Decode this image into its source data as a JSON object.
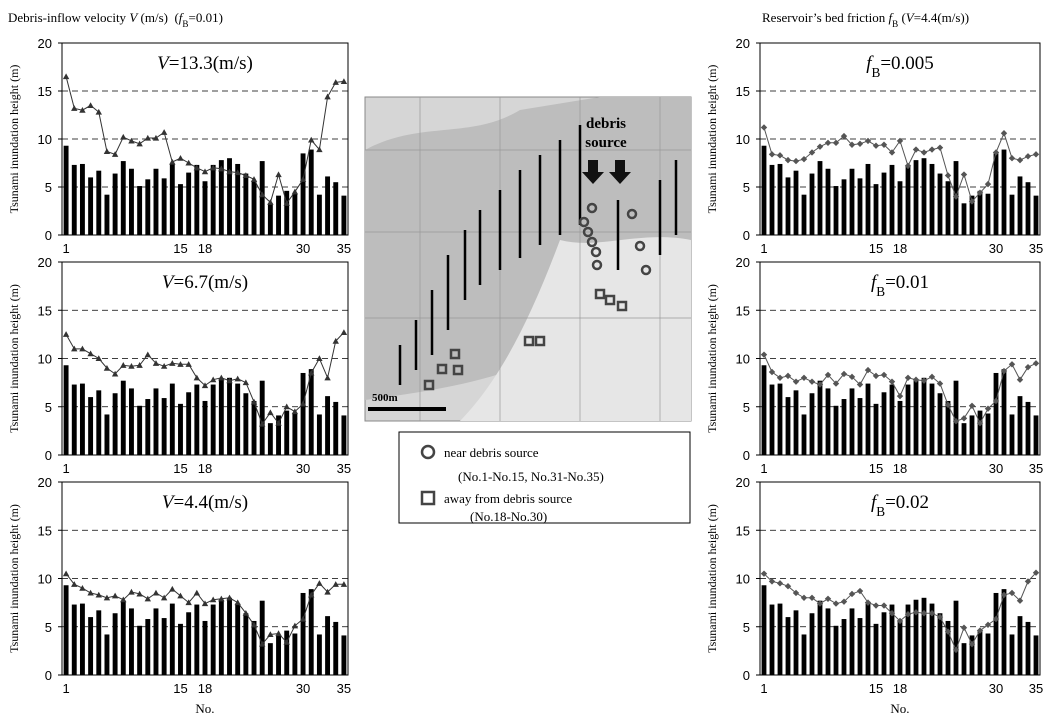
{
  "headings": [
    [
      {
        "text": "Debris-inflow velocity ",
        "style": "normal"
      },
      {
        "text": "V",
        "style": "italic"
      },
      {
        "text": " (m/s)  (",
        "style": "normal"
      },
      {
        "text": "f",
        "style": "italic"
      },
      {
        "text": "B",
        "style": "sub"
      },
      {
        "text": "=0.01)",
        "style": "normal"
      }
    ],
    [
      {
        "text": "Reservoir’s bed friction ",
        "style": "normal"
      },
      {
        "text": "f",
        "style": "italic"
      },
      {
        "text": "B",
        "style": "sub"
      },
      {
        "text": " (",
        "style": "normal"
      },
      {
        "text": "V",
        "style": "italic"
      },
      {
        "text": "=4.4(m/s))",
        "style": "normal"
      }
    ]
  ],
  "map": {
    "label1": "debris",
    "label2": "source",
    "scale": "500m",
    "legend": [
      {
        "text1": "near debris source",
        "text2": "(No.1-No.15, No.31-No.35)",
        "shape": "circle"
      },
      {
        "text1": "away from debris source",
        "text2": "(No.18-No.30)",
        "shape": "square"
      }
    ]
  },
  "chart_data": [
    {
      "type": "combo",
      "annotation": [
        {
          "text": "V",
          "style": "italic"
        },
        {
          "text": "=13.3(m/s)",
          "style": "normal"
        }
      ],
      "ylabel": "Tsunami inundation height (m)",
      "categories": [
        "1",
        null,
        null,
        null,
        null,
        null,
        null,
        null,
        null,
        null,
        null,
        null,
        null,
        null,
        "15",
        null,
        null,
        "18",
        null,
        null,
        null,
        null,
        null,
        null,
        null,
        null,
        null,
        null,
        null,
        "30",
        null,
        null,
        null,
        null,
        "35"
      ],
      "ylim": [
        0,
        20
      ],
      "yticks": [
        0,
        5,
        10,
        15,
        20
      ],
      "grid": true,
      "series": [
        {
          "style": "bar",
          "color": "#000000",
          "values": [
            9.3,
            7.3,
            7.4,
            6.0,
            6.7,
            4.2,
            6.4,
            7.7,
            6.9,
            5.1,
            5.8,
            6.9,
            5.9,
            7.4,
            5.3,
            6.5,
            7.3,
            5.6,
            7.3,
            7.8,
            8.0,
            7.4,
            6.4,
            5.6,
            7.7,
            3.3,
            4.1,
            4.6,
            4.3,
            8.5,
            8.9,
            4.2,
            6.1,
            5.5,
            4.1
          ]
        },
        {
          "style": "line",
          "marker": "triangle",
          "color": "#333333",
          "values": [
            16.5,
            13.2,
            13.0,
            13.5,
            12.8,
            8.7,
            8.4,
            10.2,
            9.8,
            9.5,
            10.1,
            10.1,
            10.7,
            7.6,
            8.0,
            7.5,
            7.0,
            6.6,
            7.0,
            6.9,
            6.6,
            6.5,
            6.2,
            5.8,
            4.2,
            3.4,
            6.3,
            3.3,
            4.5,
            5.8,
            9.9,
            8.9,
            14.4,
            15.9,
            16.0
          ]
        }
      ]
    },
    {
      "type": "combo",
      "annotation": [
        {
          "text": "f",
          "style": "italic"
        },
        {
          "text": "B",
          "style": "sub"
        },
        {
          "text": "=0.005",
          "style": "normal"
        }
      ],
      "ylabel": "Tsunami inundation height (m)",
      "categories": [
        "1",
        null,
        null,
        null,
        null,
        null,
        null,
        null,
        null,
        null,
        null,
        null,
        null,
        null,
        "15",
        null,
        null,
        "18",
        null,
        null,
        null,
        null,
        null,
        null,
        null,
        null,
        null,
        null,
        null,
        "30",
        null,
        null,
        null,
        null,
        "35"
      ],
      "ylim": [
        0,
        20
      ],
      "yticks": [
        0,
        5,
        10,
        15,
        20
      ],
      "grid": true,
      "series": [
        {
          "style": "bar",
          "color": "#000000",
          "values": [
            9.3,
            7.3,
            7.4,
            6.0,
            6.7,
            4.2,
            6.4,
            7.7,
            6.9,
            5.1,
            5.8,
            6.9,
            5.9,
            7.4,
            5.3,
            6.5,
            7.3,
            5.6,
            7.3,
            7.8,
            8.0,
            7.4,
            6.4,
            5.6,
            7.7,
            3.3,
            4.1,
            4.6,
            4.3,
            8.5,
            8.9,
            4.2,
            6.1,
            5.5,
            4.1
          ]
        },
        {
          "style": "line",
          "marker": "diamond",
          "color": "#555555",
          "values": [
            11.2,
            8.4,
            8.3,
            7.8,
            7.7,
            7.9,
            8.6,
            9.2,
            9.6,
            9.6,
            10.3,
            9.4,
            9.5,
            9.8,
            9.3,
            9.4,
            8.6,
            9.8,
            7.2,
            8.9,
            8.6,
            8.9,
            9.1,
            6.2,
            4.0,
            6.3,
            3.5,
            4.4,
            5.3,
            8.6,
            10.6,
            8.0,
            7.8,
            8.2,
            8.4
          ]
        }
      ]
    },
    {
      "type": "combo",
      "annotation": [
        {
          "text": "V",
          "style": "italic"
        },
        {
          "text": "=6.7(m/s)",
          "style": "normal"
        }
      ],
      "ylabel": "Tsunami inundation height (m)",
      "categories": [
        "1",
        null,
        null,
        null,
        null,
        null,
        null,
        null,
        null,
        null,
        null,
        null,
        null,
        null,
        "15",
        null,
        null,
        "18",
        null,
        null,
        null,
        null,
        null,
        null,
        null,
        null,
        null,
        null,
        null,
        "30",
        null,
        null,
        null,
        null,
        "35"
      ],
      "ylim": [
        0,
        20
      ],
      "yticks": [
        0,
        5,
        10,
        15,
        20
      ],
      "grid": true,
      "series": [
        {
          "style": "bar",
          "color": "#000000",
          "values": [
            9.3,
            7.3,
            7.4,
            6.0,
            6.7,
            4.2,
            6.4,
            7.7,
            6.9,
            5.1,
            5.8,
            6.9,
            5.9,
            7.4,
            5.3,
            6.5,
            7.3,
            5.6,
            7.3,
            7.8,
            8.0,
            7.4,
            6.4,
            5.6,
            7.7,
            3.3,
            4.1,
            4.6,
            4.3,
            8.5,
            8.9,
            4.2,
            6.1,
            5.5,
            4.1
          ]
        },
        {
          "style": "line",
          "marker": "triangle",
          "color": "#333333",
          "values": [
            12.5,
            11.0,
            11.0,
            10.5,
            10.0,
            9.0,
            8.4,
            9.3,
            9.2,
            9.3,
            10.4,
            9.5,
            9.2,
            9.5,
            9.4,
            9.4,
            8.0,
            7.2,
            7.8,
            8.0,
            7.7,
            7.9,
            7.5,
            5.5,
            3.2,
            4.4,
            3.3,
            5.0,
            4.5,
            5.3,
            8.5,
            10.0,
            8.0,
            11.8,
            12.7
          ]
        }
      ]
    },
    {
      "type": "combo",
      "annotation": [
        {
          "text": "f",
          "style": "italic"
        },
        {
          "text": "B",
          "style": "sub"
        },
        {
          "text": "=0.01",
          "style": "normal"
        }
      ],
      "ylabel": "Tsunami inundation height (m)",
      "categories": [
        "1",
        null,
        null,
        null,
        null,
        null,
        null,
        null,
        null,
        null,
        null,
        null,
        null,
        null,
        "15",
        null,
        null,
        "18",
        null,
        null,
        null,
        null,
        null,
        null,
        null,
        null,
        null,
        null,
        null,
        "30",
        null,
        null,
        null,
        null,
        "35"
      ],
      "ylim": [
        0,
        20
      ],
      "yticks": [
        0,
        5,
        10,
        15,
        20
      ],
      "grid": true,
      "series": [
        {
          "style": "bar",
          "color": "#000000",
          "values": [
            9.3,
            7.3,
            7.4,
            6.0,
            6.7,
            4.2,
            6.4,
            7.7,
            6.9,
            5.1,
            5.8,
            6.9,
            5.9,
            7.4,
            5.3,
            6.5,
            7.3,
            5.6,
            7.3,
            7.8,
            8.0,
            7.4,
            6.4,
            5.6,
            7.7,
            3.3,
            4.1,
            4.6,
            4.3,
            8.5,
            8.9,
            4.2,
            6.1,
            5.5,
            4.1
          ]
        },
        {
          "style": "line",
          "marker": "diamond",
          "color": "#555555",
          "values": [
            10.4,
            8.6,
            8.0,
            8.2,
            7.6,
            8.0,
            7.6,
            7.3,
            8.3,
            7.4,
            8.4,
            8.1,
            7.3,
            8.8,
            8.2,
            8.3,
            7.6,
            6.1,
            8.0,
            7.8,
            7.7,
            8.1,
            7.4,
            5.2,
            3.5,
            3.8,
            5.1,
            3.3,
            4.8,
            5.6,
            8.7,
            9.4,
            7.8,
            9.1,
            9.5
          ]
        }
      ]
    },
    {
      "type": "combo",
      "annotation": [
        {
          "text": "V",
          "style": "italic"
        },
        {
          "text": "=4.4(m/s)",
          "style": "normal"
        }
      ],
      "ylabel": "Tsunami inundation height (m)",
      "xlabel": "No.",
      "categories": [
        "1",
        null,
        null,
        null,
        null,
        null,
        null,
        null,
        null,
        null,
        null,
        null,
        null,
        null,
        "15",
        null,
        null,
        "18",
        null,
        null,
        null,
        null,
        null,
        null,
        null,
        null,
        null,
        null,
        null,
        "30",
        null,
        null,
        null,
        null,
        "35"
      ],
      "ylim": [
        0,
        20
      ],
      "yticks": [
        0,
        5,
        10,
        15,
        20
      ],
      "grid": true,
      "series": [
        {
          "style": "bar",
          "color": "#000000",
          "values": [
            9.3,
            7.3,
            7.4,
            6.0,
            6.7,
            4.2,
            6.4,
            7.7,
            6.9,
            5.1,
            5.8,
            6.9,
            5.9,
            7.4,
            5.3,
            6.5,
            7.3,
            5.6,
            7.3,
            7.8,
            8.0,
            7.4,
            6.4,
            5.6,
            7.7,
            3.3,
            4.1,
            4.6,
            4.3,
            8.5,
            8.9,
            4.2,
            6.1,
            5.5,
            4.1
          ]
        },
        {
          "style": "line",
          "marker": "triangle",
          "color": "#333333",
          "values": [
            10.5,
            9.4,
            9.0,
            8.5,
            8.3,
            8.0,
            8.2,
            7.8,
            8.6,
            8.4,
            7.9,
            8.5,
            8.0,
            8.9,
            8.2,
            7.5,
            8.5,
            7.4,
            7.8,
            7.9,
            8.0,
            7.5,
            6.4,
            5.2,
            3.2,
            4.2,
            4.3,
            3.4,
            5.1,
            5.8,
            8.3,
            9.5,
            8.6,
            9.4,
            9.4
          ]
        }
      ]
    },
    {
      "type": "combo",
      "annotation": [
        {
          "text": "f",
          "style": "italic"
        },
        {
          "text": "B",
          "style": "sub"
        },
        {
          "text": "=0.02",
          "style": "normal"
        }
      ],
      "ylabel": "Tsunami inundation height (m)",
      "xlabel": "No.",
      "categories": [
        "1",
        null,
        null,
        null,
        null,
        null,
        null,
        null,
        null,
        null,
        null,
        null,
        null,
        null,
        "15",
        null,
        null,
        "18",
        null,
        null,
        null,
        null,
        null,
        null,
        null,
        null,
        null,
        null,
        null,
        "30",
        null,
        null,
        null,
        null,
        "35"
      ],
      "ylim": [
        0,
        20
      ],
      "yticks": [
        0,
        5,
        10,
        15,
        20
      ],
      "grid": true,
      "series": [
        {
          "style": "bar",
          "color": "#000000",
          "values": [
            9.3,
            7.3,
            7.4,
            6.0,
            6.7,
            4.2,
            6.4,
            7.7,
            6.9,
            5.1,
            5.8,
            6.9,
            5.9,
            7.4,
            5.3,
            6.5,
            7.3,
            5.6,
            7.3,
            7.8,
            8.0,
            7.4,
            6.4,
            5.6,
            7.7,
            3.3,
            4.1,
            4.6,
            4.3,
            8.5,
            8.9,
            4.2,
            6.1,
            5.5,
            4.1
          ]
        },
        {
          "style": "line",
          "marker": "diamond",
          "color": "#555555",
          "values": [
            10.5,
            9.7,
            9.5,
            9.2,
            8.5,
            8.0,
            8.0,
            7.4,
            7.9,
            7.4,
            7.6,
            8.4,
            8.7,
            7.5,
            7.2,
            7.2,
            6.4,
            5.6,
            6.3,
            6.5,
            6.4,
            6.4,
            6.0,
            4.5,
            2.6,
            4.9,
            3.2,
            4.6,
            5.2,
            5.8,
            8.3,
            8.5,
            7.7,
            9.7,
            10.6
          ]
        }
      ]
    }
  ]
}
